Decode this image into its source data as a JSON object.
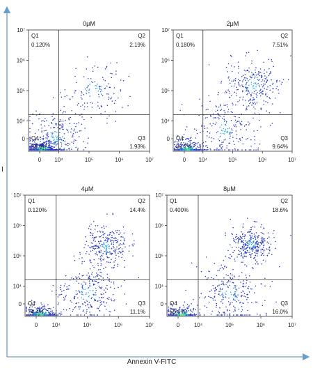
{
  "figure": {
    "xlabel": "Annexin V-FITC",
    "ylabel": "I"
  },
  "chart_data": [
    {
      "type": "scatter",
      "title": "0μM",
      "x_ticks": [
        "0",
        "10⁴",
        "10⁵",
        "10⁶",
        "10⁷"
      ],
      "y_ticks": [
        "0",
        "10⁴",
        "10⁵",
        "10⁶",
        "10⁷"
      ],
      "quadrants": {
        "Q1": {
          "label": "Q1",
          "value": "0.120%"
        },
        "Q2": {
          "label": "Q2",
          "value": "2.19%"
        },
        "Q3": {
          "label": "Q3",
          "value": "1.93%"
        },
        "Q4": {
          "label": "Q4",
          "value": "95.8%"
        }
      },
      "gate": {
        "x": 10000,
        "y": 16000
      },
      "clusters": [
        {
          "x": 3000,
          "y": 1000,
          "spread": 0.25,
          "share": 0.6
        },
        {
          "x": 8000,
          "y": 3000,
          "spread": 0.45,
          "share": 0.25
        },
        {
          "x": 150000,
          "y": 100000,
          "spread": 0.5,
          "share": 0.15
        }
      ]
    },
    {
      "type": "scatter",
      "title": "2μM",
      "x_ticks": [
        "0",
        "10⁴",
        "10⁵",
        "10⁶",
        "10⁷"
      ],
      "y_ticks": [
        "0",
        "10⁴",
        "10⁵",
        "10⁶",
        "10⁷"
      ],
      "quadrants": {
        "Q1": {
          "label": "Q1",
          "value": "0.180%"
        },
        "Q2": {
          "label": "Q2",
          "value": "7.51%"
        },
        "Q3": {
          "label": "Q3",
          "value": "9.64%"
        },
        "Q4": {
          "label": "Q4",
          "value": "82.7%"
        }
      },
      "gate": {
        "x": 10000,
        "y": 16000
      },
      "clusters": [
        {
          "x": 3000,
          "y": 1000,
          "spread": 0.25,
          "share": 0.45
        },
        {
          "x": 50000,
          "y": 5000,
          "spread": 0.55,
          "share": 0.25
        },
        {
          "x": 500000,
          "y": 150000,
          "spread": 0.45,
          "share": 0.3
        }
      ]
    },
    {
      "type": "scatter",
      "title": "4μM",
      "x_ticks": [
        "0",
        "10⁴",
        "10⁵",
        "10⁶",
        "10⁷"
      ],
      "y_ticks": [
        "0",
        "10⁴",
        "10⁵",
        "10⁶",
        "10⁷"
      ],
      "quadrants": {
        "Q1": {
          "label": "Q1",
          "value": "0.120%"
        },
        "Q2": {
          "label": "Q2",
          "value": "14.4%"
        },
        "Q3": {
          "label": "Q3",
          "value": "11.1%"
        },
        "Q4": {
          "label": "Q4",
          "value": "74.4%"
        }
      },
      "gate": {
        "x": 10000,
        "y": 16000
      },
      "clusters": [
        {
          "x": 3000,
          "y": 1000,
          "spread": 0.25,
          "share": 0.4
        },
        {
          "x": 100000,
          "y": 6000,
          "spread": 0.5,
          "share": 0.3
        },
        {
          "x": 400000,
          "y": 200000,
          "spread": 0.35,
          "share": 0.3
        }
      ]
    },
    {
      "type": "scatter",
      "title": "8μM",
      "x_ticks": [
        "0",
        "10⁴",
        "10⁵",
        "10⁶",
        "10⁷"
      ],
      "y_ticks": [
        "0",
        "10⁴",
        "10⁵",
        "10⁶",
        "10⁷"
      ],
      "quadrants": {
        "Q1": {
          "label": "Q1",
          "value": "0.400%"
        },
        "Q2": {
          "label": "Q2",
          "value": "18.6%"
        },
        "Q3": {
          "label": "Q3",
          "value": "16.0%"
        },
        "Q4": {
          "label": "Q4",
          "value": "65.0%"
        }
      },
      "gate": {
        "x": 10000,
        "y": 16000
      },
      "clusters": [
        {
          "x": 3000,
          "y": 1000,
          "spread": 0.25,
          "share": 0.35
        },
        {
          "x": 100000,
          "y": 6000,
          "spread": 0.5,
          "share": 0.3
        },
        {
          "x": 500000,
          "y": 250000,
          "spread": 0.3,
          "share": 0.35
        }
      ]
    }
  ]
}
